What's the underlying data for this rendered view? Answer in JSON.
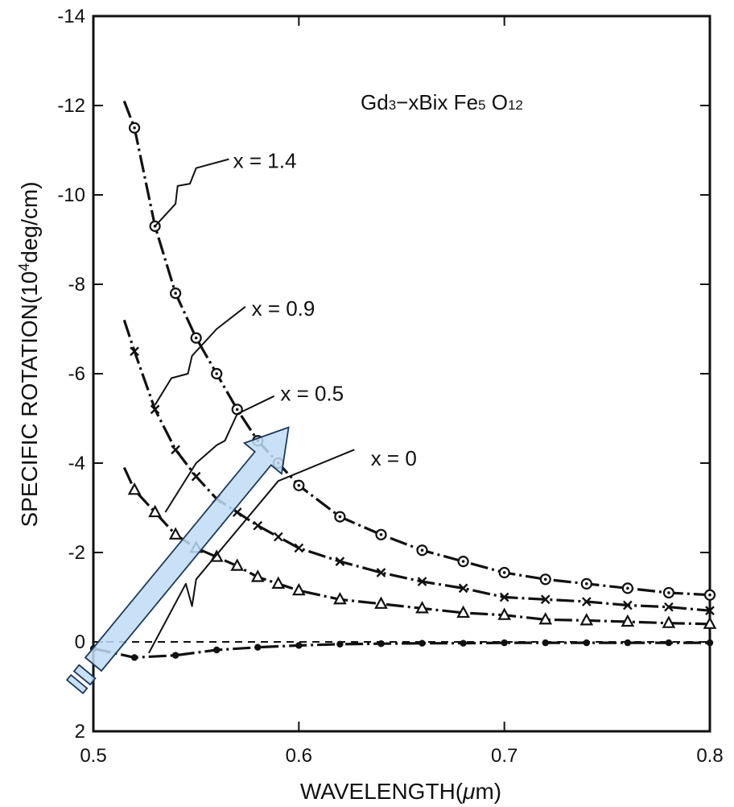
{
  "chart_data": {
    "type": "line",
    "title": "Gd3−xBix Fe5 O12",
    "title_parts": {
      "a": "Gd",
      "b": "3",
      "c": "−xBix Fe",
      "d": "5",
      "e": " O",
      "f": "12"
    },
    "xlabel": "WAVELENGTH(",
    "xlabel_mu": "μ",
    "xlabel_end": "m)",
    "ylabel": "SPECIFIC ROTATION(10",
    "ylabel_sup": "4",
    "ylabel_end": "deg/cm)",
    "xlim": [
      0.5,
      0.8
    ],
    "ylim": [
      2,
      -14
    ],
    "x_ticks": [
      {
        "v": 0.5,
        "label": "0.5"
      },
      {
        "v": 0.6,
        "label": "0.6"
      },
      {
        "v": 0.7,
        "label": "0.7"
      },
      {
        "v": 0.8,
        "label": "0.8"
      }
    ],
    "y_ticks": [
      {
        "v": -14,
        "label": "-14"
      },
      {
        "v": -12,
        "label": "-12"
      },
      {
        "v": -10,
        "label": "-10"
      },
      {
        "v": -8,
        "label": "-8"
      },
      {
        "v": -6,
        "label": "-6"
      },
      {
        "v": -4,
        "label": "-4"
      },
      {
        "v": -2,
        "label": "-2"
      },
      {
        "v": 0,
        "label": "0"
      },
      {
        "v": 2,
        "label": "2"
      }
    ],
    "series": [
      {
        "name": "x = 1.4",
        "marker": "circle-dot",
        "x": [
          0.515,
          0.52,
          0.53,
          0.54,
          0.55,
          0.56,
          0.57,
          0.58,
          0.59,
          0.6,
          0.62,
          0.64,
          0.66,
          0.68,
          0.7,
          0.72,
          0.74,
          0.76,
          0.78,
          0.8
        ],
        "y": [
          -12.1,
          -11.5,
          -9.3,
          -7.8,
          -6.8,
          -6.0,
          -5.2,
          -4.5,
          -4.0,
          -3.5,
          -2.8,
          -2.4,
          -2.05,
          -1.8,
          -1.55,
          -1.4,
          -1.3,
          -1.2,
          -1.1,
          -1.05
        ],
        "marker_x": [
          0.52,
          0.53,
          0.54,
          0.55,
          0.56,
          0.57,
          0.58,
          0.59,
          0.6,
          0.62,
          0.64,
          0.66,
          0.68,
          0.7,
          0.72,
          0.74,
          0.76,
          0.78,
          0.8
        ],
        "marker_y": [
          -11.5,
          -9.3,
          -7.8,
          -6.8,
          -6.0,
          -5.2,
          -4.5,
          -4.0,
          -3.5,
          -2.8,
          -2.4,
          -2.05,
          -1.8,
          -1.55,
          -1.4,
          -1.3,
          -1.2,
          -1.1,
          -1.05
        ]
      },
      {
        "name": "x = 0.9",
        "marker": "cross",
        "x": [
          0.515,
          0.52,
          0.53,
          0.54,
          0.55,
          0.56,
          0.57,
          0.58,
          0.59,
          0.6,
          0.62,
          0.64,
          0.66,
          0.68,
          0.7,
          0.72,
          0.74,
          0.76,
          0.78,
          0.8
        ],
        "y": [
          -7.2,
          -6.5,
          -5.2,
          -4.3,
          -3.7,
          -3.2,
          -2.9,
          -2.6,
          -2.35,
          -2.1,
          -1.8,
          -1.55,
          -1.35,
          -1.2,
          -1.0,
          -0.95,
          -0.9,
          -0.82,
          -0.78,
          -0.7
        ],
        "marker_x": [
          0.52,
          0.53,
          0.54,
          0.55,
          0.56,
          0.57,
          0.58,
          0.59,
          0.6,
          0.62,
          0.64,
          0.66,
          0.68,
          0.7,
          0.72,
          0.74,
          0.76,
          0.78,
          0.8
        ],
        "marker_y": [
          -6.5,
          -5.2,
          -4.3,
          -3.7,
          -3.2,
          -2.9,
          -2.6,
          -2.35,
          -2.1,
          -1.8,
          -1.55,
          -1.35,
          -1.2,
          -1.0,
          -0.95,
          -0.9,
          -0.82,
          -0.78,
          -0.7
        ]
      },
      {
        "name": "x = 0.5",
        "marker": "triangle",
        "x": [
          0.515,
          0.52,
          0.53,
          0.54,
          0.55,
          0.56,
          0.57,
          0.58,
          0.59,
          0.6,
          0.62,
          0.64,
          0.66,
          0.68,
          0.7,
          0.72,
          0.74,
          0.76,
          0.78,
          0.8
        ],
        "y": [
          -3.9,
          -3.4,
          -2.9,
          -2.4,
          -2.1,
          -1.9,
          -1.7,
          -1.45,
          -1.3,
          -1.15,
          -0.95,
          -0.85,
          -0.75,
          -0.65,
          -0.6,
          -0.5,
          -0.48,
          -0.45,
          -0.42,
          -0.4
        ],
        "marker_x": [
          0.52,
          0.53,
          0.54,
          0.55,
          0.56,
          0.57,
          0.58,
          0.59,
          0.6,
          0.62,
          0.64,
          0.66,
          0.68,
          0.7,
          0.72,
          0.74,
          0.76,
          0.78,
          0.8
        ],
        "marker_y": [
          -3.4,
          -2.9,
          -2.4,
          -2.1,
          -1.9,
          -1.7,
          -1.45,
          -1.3,
          -1.15,
          -0.95,
          -0.85,
          -0.75,
          -0.65,
          -0.6,
          -0.5,
          -0.48,
          -0.45,
          -0.42,
          -0.4
        ]
      },
      {
        "name": "x = 0",
        "marker": "dot",
        "x": [
          0.5,
          0.52,
          0.54,
          0.56,
          0.58,
          0.6,
          0.62,
          0.64,
          0.66,
          0.68,
          0.7,
          0.72,
          0.74,
          0.76,
          0.78,
          0.8
        ],
        "y": [
          0.15,
          0.35,
          0.3,
          0.18,
          0.12,
          0.08,
          0.05,
          0.04,
          0.03,
          0.03,
          0.02,
          0.02,
          0.02,
          0.02,
          0.02,
          0.02
        ],
        "marker_x": [
          0.5,
          0.52,
          0.54,
          0.56,
          0.58,
          0.6,
          0.62,
          0.64,
          0.66,
          0.68,
          0.7,
          0.72,
          0.74,
          0.76,
          0.78,
          0.8
        ],
        "marker_y": [
          0.15,
          0.35,
          0.3,
          0.18,
          0.12,
          0.08,
          0.05,
          0.04,
          0.03,
          0.03,
          0.02,
          0.02,
          0.02,
          0.02,
          0.02,
          0.02
        ]
      }
    ],
    "annotations": [
      {
        "text": "x = 1.4",
        "x": 0.568,
        "y": -10.6,
        "leader_x": [
          0.566,
          0.55,
          0.547,
          0.541,
          0.54,
          0.53
        ],
        "leader_y": [
          -10.8,
          -10.6,
          -10.25,
          -10.2,
          -9.8,
          -9.3
        ]
      },
      {
        "text": "x = 0.9",
        "x": 0.577,
        "y": -7.3,
        "leader_x": [
          0.574,
          0.56,
          0.548,
          0.546,
          0.538,
          0.53
        ],
        "leader_y": [
          -7.5,
          -7.0,
          -6.4,
          -6.0,
          -5.9,
          -5.3
        ]
      },
      {
        "text": "x = 0.5",
        "x": 0.591,
        "y": -5.4,
        "leader_x": [
          0.588,
          0.57,
          0.564,
          0.56,
          0.55,
          0.535
        ],
        "leader_y": [
          -5.5,
          -5.1,
          -4.5,
          -4.4,
          -4.0,
          -2.9
        ]
      },
      {
        "text": "x = 0",
        "x": 0.635,
        "y": -3.95,
        "leader_x": [
          0.627,
          0.59,
          0.55,
          0.548,
          0.545,
          0.527
        ],
        "leader_y": [
          -4.3,
          -3.6,
          -1.4,
          -0.8,
          -1.3,
          0.25
        ]
      }
    ],
    "zero_line": {
      "y": 0,
      "style": "dashed"
    },
    "overlay_arrow": {
      "from": [
        0.5,
        0.5
      ],
      "to": [
        0.595,
        -4.8
      ],
      "color": "#bfdcf5",
      "stroke": "#1e3a5a"
    }
  }
}
